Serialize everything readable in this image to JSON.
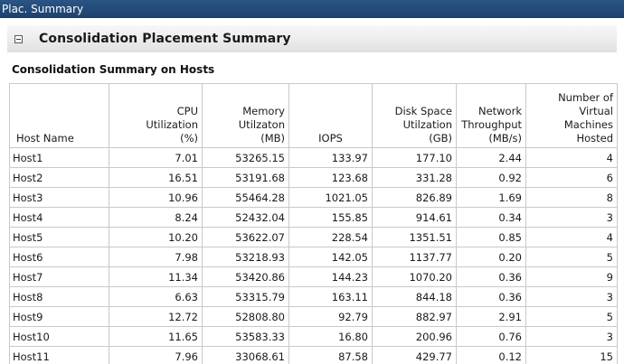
{
  "window": {
    "title": "Plac. Summary"
  },
  "section": {
    "title": "Consolidation Placement Summary",
    "subtitle": "Consolidation Summary on Hosts"
  },
  "table": {
    "headers": {
      "host": [
        "Host Name"
      ],
      "cpu": [
        "CPU",
        "Utilization",
        "(%)"
      ],
      "memory": [
        "Memory",
        "Utilzaton",
        "(MB)"
      ],
      "iops": [
        "IOPS"
      ],
      "disk": [
        "Disk Space",
        "Utilzation",
        "(GB)"
      ],
      "network": [
        "Network",
        "Throughput",
        "(MB/s)"
      ],
      "vms": [
        "Number of Virtual",
        "Machines Hosted"
      ]
    },
    "rows": [
      [
        "Host1",
        "7.01",
        "53265.15",
        "133.97",
        "177.10",
        "2.44",
        "4"
      ],
      [
        "Host2",
        "16.51",
        "53191.68",
        "123.68",
        "331.28",
        "0.92",
        "6"
      ],
      [
        "Host3",
        "10.96",
        "55464.28",
        "1021.05",
        "826.89",
        "1.69",
        "8"
      ],
      [
        "Host4",
        "8.24",
        "52432.04",
        "155.85",
        "914.61",
        "0.34",
        "3"
      ],
      [
        "Host5",
        "10.20",
        "53622.07",
        "228.54",
        "1351.51",
        "0.85",
        "4"
      ],
      [
        "Host6",
        "7.98",
        "53218.93",
        "142.05",
        "1137.77",
        "0.20",
        "5"
      ],
      [
        "Host7",
        "11.34",
        "53420.86",
        "144.23",
        "1070.20",
        "0.36",
        "9"
      ],
      [
        "Host8",
        "6.63",
        "53315.79",
        "163.11",
        "844.18",
        "0.36",
        "3"
      ],
      [
        "Host9",
        "12.72",
        "52808.80",
        "92.79",
        "882.97",
        "2.91",
        "5"
      ],
      [
        "Host10",
        "11.65",
        "53583.33",
        "16.80",
        "200.96",
        "0.76",
        "3"
      ],
      [
        "Host11",
        "7.96",
        "33068.61",
        "87.58",
        "429.77",
        "0.12",
        "15"
      ]
    ]
  }
}
